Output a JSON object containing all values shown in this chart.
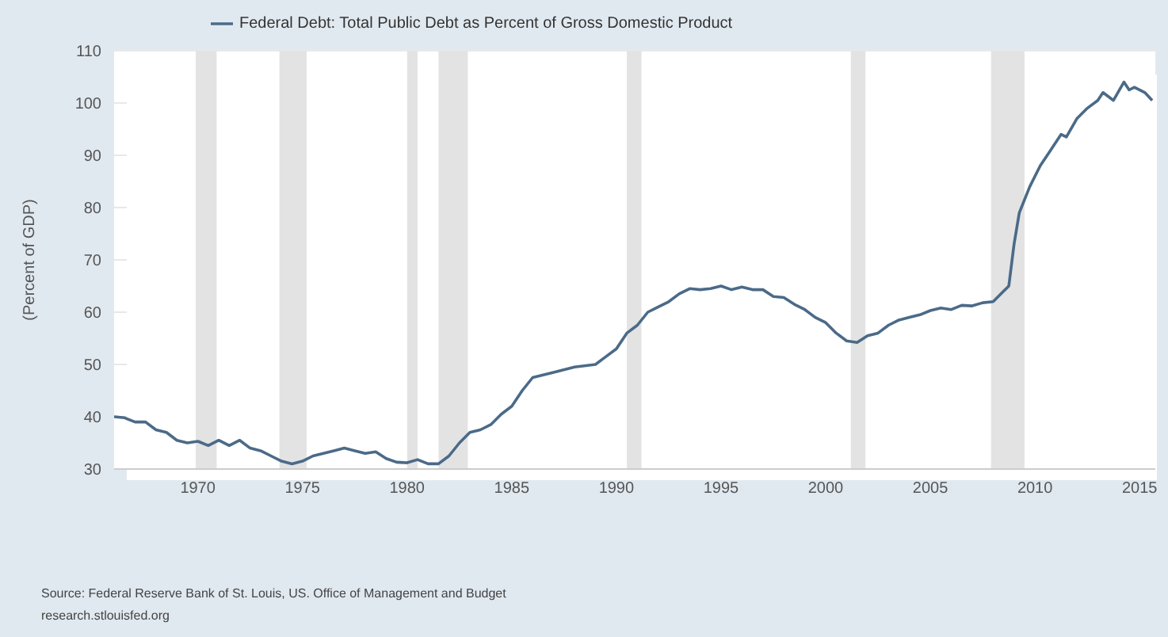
{
  "chart_data": {
    "type": "line",
    "ylabel": "(Percent of GDP)",
    "xlim": [
      1966,
      2015.75
    ],
    "xticks": [
      1970,
      1975,
      1980,
      1985,
      1990,
      1995,
      2000,
      2005,
      2010,
      2015
    ],
    "ylim": [
      30,
      110
    ],
    "yticks": [
      30,
      40,
      50,
      60,
      70,
      80,
      90,
      100,
      110
    ],
    "grid": "y",
    "legend": "top left",
    "marker": "none",
    "line_style": "solid",
    "x": [
      1966,
      1966.5,
      1967,
      1967.5,
      1968,
      1968.5,
      1969,
      1969.5,
      1970,
      1970.5,
      1971,
      1971.5,
      1972,
      1972.5,
      1973,
      1973.5,
      1974,
      1974.5,
      1975,
      1975.5,
      1976,
      1976.5,
      1977,
      1977.5,
      1978,
      1978.5,
      1979,
      1979.5,
      1980,
      1980.5,
      1981,
      1981.5,
      1982,
      1982.5,
      1983,
      1983.5,
      1984,
      1984.5,
      1985,
      1985.5,
      1986,
      1986.5,
      1987,
      1988,
      1989,
      1989.5,
      1990,
      1990.5,
      1991,
      1991.5,
      1992,
      1992.5,
      1993,
      1993.5,
      1994,
      1994.5,
      1995,
      1995.5,
      1996,
      1996.5,
      1997,
      1997.5,
      1998,
      1998.5,
      1999,
      1999.5,
      2000,
      2000.5,
      2001,
      2001.5,
      2002,
      2002.5,
      2003,
      2003.5,
      2004,
      2004.5,
      2005,
      2005.5,
      2006,
      2006.5,
      2007,
      2007.5,
      2008,
      2008.5,
      2008.75,
      2009,
      2009.25,
      2009.75,
      2010.25,
      2010.75,
      2011.25,
      2011.5,
      2012,
      2012.5,
      2013,
      2013.25,
      2013.75,
      2014.25,
      2014.5,
      2014.75,
      2015.25,
      2015.6
    ],
    "series": [
      {
        "name": "Federal Debt: Total Public Debt as Percent of Gross Domestic Product",
        "color": "#4b6a88",
        "values": [
          40,
          39.8,
          39,
          39,
          37.5,
          37,
          35.5,
          35,
          35.3,
          34.5,
          35.5,
          34.5,
          35.5,
          34,
          33.5,
          32.5,
          31.5,
          31,
          31.5,
          32.5,
          33,
          33.5,
          34,
          33.5,
          33,
          33.3,
          32,
          31.3,
          31.2,
          31.8,
          31,
          31,
          32.5,
          35,
          37,
          37.5,
          38.5,
          40.5,
          42,
          45,
          47.5,
          48,
          48.5,
          49.5,
          50,
          51.5,
          53,
          56,
          57.5,
          60,
          61,
          62,
          63.5,
          64.5,
          64.3,
          64.5,
          65,
          64.3,
          64.8,
          64.3,
          64.3,
          63,
          62.8,
          61.5,
          60.5,
          59,
          58,
          56,
          54.5,
          54.2,
          55.5,
          56,
          57.5,
          58.5,
          59,
          59.5,
          60.3,
          60.8,
          60.5,
          61.3,
          61.2,
          61.8,
          62,
          64,
          65,
          73,
          79,
          84,
          88,
          91,
          94,
          93.5,
          97,
          99,
          100.5,
          102,
          100.5,
          104,
          102.5,
          103,
          102,
          100.5
        ]
      }
    ],
    "bands": [
      {
        "axis": "x",
        "from": 1969.9,
        "to": 1970.9,
        "color": "#e3e3e3"
      },
      {
        "axis": "x",
        "from": 1973.9,
        "to": 1975.2,
        "color": "#e3e3e3"
      },
      {
        "axis": "x",
        "from": 1980,
        "to": 1980.5,
        "color": "#e3e3e3"
      },
      {
        "axis": "x",
        "from": 1981.5,
        "to": 1982.9,
        "color": "#e3e3e3"
      },
      {
        "axis": "x",
        "from": 1990.5,
        "to": 1991.2,
        "color": "#e3e3e3"
      },
      {
        "axis": "x",
        "from": 2001.2,
        "to": 2001.9,
        "color": "#e3e3e3"
      },
      {
        "axis": "x",
        "from": 2007.9,
        "to": 2009.5,
        "color": "#e3e3e3"
      }
    ],
    "annotations": [
      "Source: Federal Reserve Bank of St. Louis, US. Office of Management and Budget",
      "research.stlouisfed.org"
    ]
  }
}
